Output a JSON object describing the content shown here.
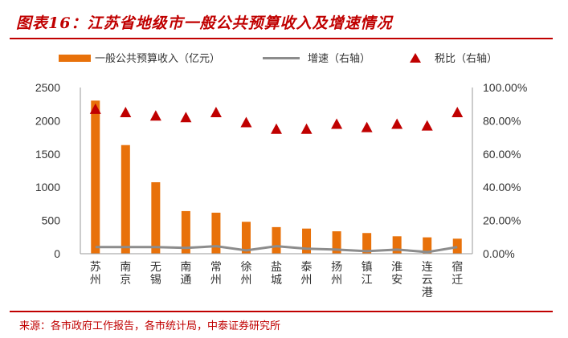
{
  "title": "图表16：江苏省地级市一般公共预算收入及增速情况",
  "source": "来源：各市政府工作报告，各市统计局，中泰证券研究所",
  "chart_data": {
    "type": "bar",
    "categories": [
      "苏州",
      "南京",
      "无锡",
      "南通",
      "常州",
      "徐州",
      "盐城",
      "泰州",
      "扬州",
      "镇江",
      "淮安",
      "连云港",
      "宿迁"
    ],
    "series": [
      {
        "name": "一般公共预算收入（亿元）",
        "type": "bar",
        "axis": "left",
        "color": "#e8710a",
        "values": [
          2303,
          1634,
          1075,
          641,
          617,
          480,
          400,
          378,
          337,
          311,
          262,
          246,
          226
        ]
      },
      {
        "name": "增速（右轴）",
        "type": "line",
        "axis": "right",
        "color": "#8c8c8c",
        "values": [
          0.04,
          0.04,
          0.04,
          0.035,
          0.045,
          0.02,
          0.045,
          0.03,
          0.025,
          0.015,
          0.025,
          0.01,
          0.04
        ]
      },
      {
        "name": "税比（右轴）",
        "type": "scatter",
        "axis": "right",
        "color": "#c00000",
        "values": [
          0.87,
          0.85,
          0.83,
          0.82,
          0.85,
          0.79,
          0.75,
          0.75,
          0.78,
          0.76,
          0.78,
          0.77,
          0.85
        ]
      }
    ],
    "left_axis": {
      "min": 0,
      "max": 2500,
      "ticks": [
        "0",
        "500",
        "1000",
        "1500",
        "2000",
        "2500"
      ]
    },
    "right_axis": {
      "min": 0,
      "max": 1,
      "ticks": [
        "0.00%",
        "20.00%",
        "40.00%",
        "60.00%",
        "80.00%",
        "100.00%"
      ]
    },
    "legend_position": "top",
    "grid": false
  }
}
